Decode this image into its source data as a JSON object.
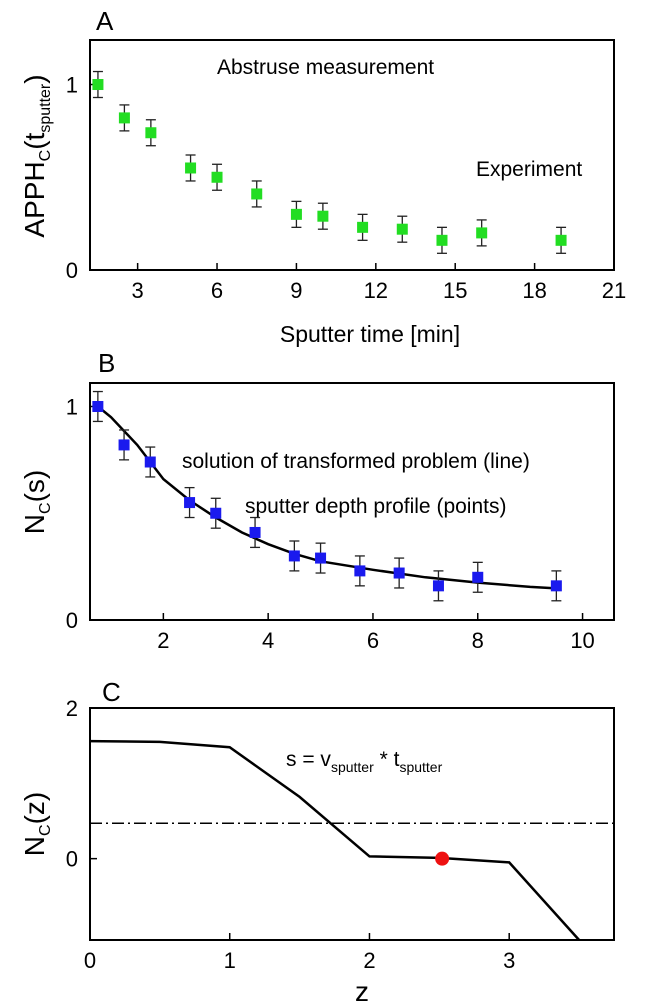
{
  "chart_data": [
    {
      "type": "scatter",
      "panel_label": "A",
      "title": "",
      "xlabel": "Sputter time [min]",
      "ylabel": {
        "main": "APPH",
        "sub1": "C",
        "mid": "(t",
        "sub2": "sputter",
        "end": ")"
      },
      "xlim": [
        1.2,
        21
      ],
      "ylim": [
        0,
        1.24
      ],
      "x_ticks": [
        3,
        6,
        9,
        12,
        15,
        18,
        21
      ],
      "y_ticks": [
        0,
        1
      ],
      "grid": false,
      "annotations": [
        "Abstruse measurement",
        "Experiment"
      ],
      "series": [
        {
          "marker_color": "#22dd22",
          "points": [
            {
              "x": 1.5,
              "y": 1.0,
              "err": 0.07
            },
            {
              "x": 2.5,
              "y": 0.82,
              "err": 0.07
            },
            {
              "x": 3.5,
              "y": 0.74,
              "err": 0.07
            },
            {
              "x": 5.0,
              "y": 0.55,
              "err": 0.07
            },
            {
              "x": 6.0,
              "y": 0.5,
              "err": 0.07
            },
            {
              "x": 7.5,
              "y": 0.41,
              "err": 0.07
            },
            {
              "x": 9.0,
              "y": 0.3,
              "err": 0.07
            },
            {
              "x": 10.0,
              "y": 0.29,
              "err": 0.07
            },
            {
              "x": 11.5,
              "y": 0.23,
              "err": 0.07
            },
            {
              "x": 13.0,
              "y": 0.22,
              "err": 0.07
            },
            {
              "x": 14.5,
              "y": 0.16,
              "err": 0.07
            },
            {
              "x": 16.0,
              "y": 0.2,
              "err": 0.07
            },
            {
              "x": 19.0,
              "y": 0.16,
              "err": 0.07
            }
          ]
        }
      ]
    },
    {
      "type": "scatter",
      "panel_label": "B",
      "title": "",
      "xlabel": "",
      "ylabel": {
        "main": "N",
        "sub1": "C",
        "mid": "(s)",
        "sub2": "",
        "end": ""
      },
      "xlim": [
        0.6,
        10.6
      ],
      "ylim": [
        0,
        1.11
      ],
      "x_ticks": [
        2,
        4,
        6,
        8,
        10
      ],
      "y_ticks": [
        0,
        1
      ],
      "grid": false,
      "annotations": [
        "solution of transformed problem (line)",
        "sputter depth profile (points)"
      ],
      "series": [
        {
          "marker_color": "#1a1aee",
          "points": [
            {
              "x": 0.75,
              "y": 1.0,
              "err": 0.07
            },
            {
              "x": 1.25,
              "y": 0.82,
              "err": 0.07
            },
            {
              "x": 1.75,
              "y": 0.74,
              "err": 0.07
            },
            {
              "x": 2.5,
              "y": 0.55,
              "err": 0.07
            },
            {
              "x": 3.0,
              "y": 0.5,
              "err": 0.07
            },
            {
              "x": 3.75,
              "y": 0.41,
              "err": 0.07
            },
            {
              "x": 4.5,
              "y": 0.3,
              "err": 0.07
            },
            {
              "x": 5.0,
              "y": 0.29,
              "err": 0.07
            },
            {
              "x": 5.75,
              "y": 0.23,
              "err": 0.07
            },
            {
              "x": 6.5,
              "y": 0.22,
              "err": 0.07
            },
            {
              "x": 7.25,
              "y": 0.16,
              "err": 0.07
            },
            {
              "x": 8.0,
              "y": 0.2,
              "err": 0.07
            },
            {
              "x": 9.5,
              "y": 0.16,
              "err": 0.07
            }
          ]
        },
        {
          "line_color": "#000000",
          "line": [
            {
              "x": 0.75,
              "y": 1.0
            },
            {
              "x": 1.0,
              "y": 0.95
            },
            {
              "x": 1.5,
              "y": 0.82
            },
            {
              "x": 2.0,
              "y": 0.66
            },
            {
              "x": 2.5,
              "y": 0.56
            },
            {
              "x": 3.0,
              "y": 0.48
            },
            {
              "x": 3.5,
              "y": 0.41
            },
            {
              "x": 4.0,
              "y": 0.355
            },
            {
              "x": 4.5,
              "y": 0.31
            },
            {
              "x": 5.0,
              "y": 0.275
            },
            {
              "x": 6.0,
              "y": 0.235
            },
            {
              "x": 7.0,
              "y": 0.2
            },
            {
              "x": 8.0,
              "y": 0.175
            },
            {
              "x": 9.0,
              "y": 0.155
            },
            {
              "x": 9.5,
              "y": 0.148
            }
          ]
        }
      ]
    },
    {
      "type": "line",
      "panel_label": "C",
      "title": "",
      "xlabel": "z",
      "ylabel": {
        "main": "N",
        "sub1": "C",
        "mid": "(z)",
        "sub2": "",
        "end": ""
      },
      "xlim": [
        0,
        3.75
      ],
      "ylim": [
        -1.08,
        2.0
      ],
      "x_ticks": [
        0,
        1,
        2,
        3
      ],
      "y_ticks": [
        0,
        2
      ],
      "grid": false,
      "annotation": {
        "main": "s = v",
        "sub1": "sputter",
        "mid": " * t",
        "sub2": "sputter"
      },
      "series": [
        {
          "line_color": "#000000",
          "line": [
            {
              "x": 0.0,
              "y": 1.56
            },
            {
              "x": 0.5,
              "y": 1.55
            },
            {
              "x": 1.0,
              "y": 1.48
            },
            {
              "x": 1.5,
              "y": 0.82
            },
            {
              "x": 2.0,
              "y": 0.03
            },
            {
              "x": 2.5,
              "y": 0.01
            },
            {
              "x": 3.0,
              "y": -0.05
            },
            {
              "x": 3.5,
              "y": -1.08
            }
          ]
        }
      ],
      "reference_line": {
        "y": 0.47,
        "style": "dash-dot"
      },
      "highlight_point": {
        "x": 2.52,
        "y": 0.0,
        "color": "#ee1111"
      }
    }
  ]
}
